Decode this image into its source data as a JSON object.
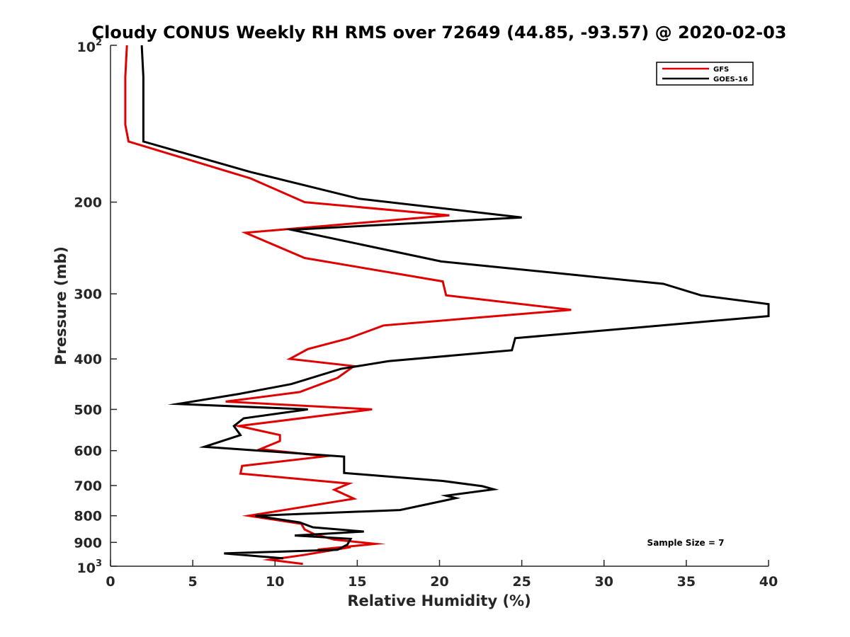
{
  "chart_data": {
    "type": "line",
    "title": "Cloudy CONUS Weekly RH RMS over 72649 (44.85, -93.57) @ 2020-02-03",
    "xlabel": "Relative Humidity (%)",
    "ylabel": "Pressure (mb)",
    "xlim": [
      0,
      40
    ],
    "ylim": [
      100,
      1000
    ],
    "y_scale": "log",
    "y_reversed": true,
    "grid": false,
    "legend_position": "top-right",
    "x_ticks": [
      0,
      5,
      10,
      15,
      20,
      25,
      30,
      35,
      40
    ],
    "x_tick_labels": [
      "0",
      "5",
      "10",
      "15",
      "20",
      "25",
      "30",
      "35",
      "40"
    ],
    "y_ticks": [
      {
        "value": 100,
        "base": "10",
        "exp": "2"
      },
      {
        "value": 200,
        "label": "200"
      },
      {
        "value": 300,
        "label": "300"
      },
      {
        "value": 400,
        "label": "400"
      },
      {
        "value": 500,
        "label": "500"
      },
      {
        "value": 600,
        "label": "600"
      },
      {
        "value": 700,
        "label": "700"
      },
      {
        "value": 800,
        "label": "800"
      },
      {
        "value": 900,
        "label": "900"
      },
      {
        "value": 1000,
        "base": "10",
        "exp": "3"
      }
    ],
    "annotation": "Sample Size = 7",
    "series": [
      {
        "name": "GFS",
        "color": "#e00000",
        "points": [
          [
            1.0,
            100
          ],
          [
            0.9,
            115
          ],
          [
            0.9,
            130
          ],
          [
            0.9,
            142
          ],
          [
            1.1,
            153
          ],
          [
            8.5,
            180
          ],
          [
            11.8,
            200
          ],
          [
            20.6,
            212
          ],
          [
            8.2,
            229
          ],
          [
            11.8,
            256
          ],
          [
            20.2,
            284
          ],
          [
            20.4,
            302
          ],
          [
            28.0,
            322
          ],
          [
            16.6,
            345
          ],
          [
            14.5,
            365
          ],
          [
            12.0,
            383
          ],
          [
            10.9,
            400
          ],
          [
            14.8,
            413
          ],
          [
            13.8,
            435
          ],
          [
            11.5,
            463
          ],
          [
            7.0,
            483
          ],
          [
            15.9,
            500
          ],
          [
            7.8,
            538
          ],
          [
            10.3,
            560
          ],
          [
            10.3,
            575
          ],
          [
            9.1,
            596
          ],
          [
            13.1,
            615
          ],
          [
            8.0,
            642
          ],
          [
            7.9,
            664
          ],
          [
            14.5,
            694
          ],
          [
            13.6,
            713
          ],
          [
            14.8,
            742
          ],
          [
            8.4,
            800
          ],
          [
            11.6,
            829
          ],
          [
            11.8,
            850
          ],
          [
            12.4,
            868
          ],
          [
            13.6,
            889
          ],
          [
            16.1,
            906
          ],
          [
            12.6,
            929
          ],
          [
            14.6,
            919
          ],
          [
            11.7,
            952
          ],
          [
            9.7,
            972
          ],
          [
            11.7,
            990
          ]
        ]
      },
      {
        "name": "GOES-16",
        "color": "#000000",
        "points": [
          [
            1.9,
            100
          ],
          [
            2.0,
            115
          ],
          [
            2.0,
            142
          ],
          [
            2.0,
            153
          ],
          [
            8.5,
            175
          ],
          [
            15.1,
            197
          ],
          [
            25.0,
            214
          ],
          [
            11.0,
            226
          ],
          [
            20.1,
            260
          ],
          [
            33.6,
            287
          ],
          [
            35.9,
            302
          ],
          [
            40.0,
            314
          ],
          [
            40.0,
            331
          ],
          [
            24.6,
            365
          ],
          [
            24.4,
            385
          ],
          [
            16.9,
            404
          ],
          [
            14.0,
            418
          ],
          [
            11.0,
            447
          ],
          [
            7.8,
            467
          ],
          [
            4.1,
            488
          ],
          [
            12.0,
            500
          ],
          [
            8.1,
            520
          ],
          [
            7.5,
            538
          ],
          [
            7.9,
            560
          ],
          [
            5.7,
            590
          ],
          [
            14.2,
            616
          ],
          [
            14.2,
            630
          ],
          [
            14.2,
            662
          ],
          [
            20.2,
            686
          ],
          [
            22.6,
            702
          ],
          [
            23.3,
            712
          ],
          [
            20.4,
            732
          ],
          [
            21.0,
            740
          ],
          [
            17.6,
            780
          ],
          [
            8.8,
            800
          ],
          [
            11.5,
            824
          ],
          [
            12.3,
            842
          ],
          [
            15.4,
            858
          ],
          [
            11.2,
            873
          ],
          [
            14.6,
            886
          ],
          [
            14.4,
            909
          ],
          [
            13.8,
            930
          ],
          [
            6.9,
            945
          ],
          [
            10.5,
            966
          ]
        ]
      }
    ]
  }
}
